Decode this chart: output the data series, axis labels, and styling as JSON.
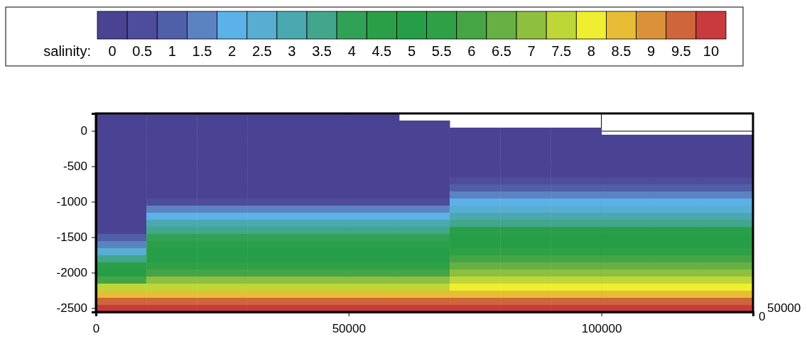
{
  "chart_data": {
    "type": "heatmap",
    "clabel": "salinity:",
    "x": [
      5000,
      15000,
      25000,
      35000,
      45000,
      55000,
      65000,
      75000,
      85000,
      95000,
      105000,
      115000,
      125000
    ],
    "xlim": [
      0,
      130000
    ],
    "xticks": [
      0,
      50000,
      100000
    ],
    "y_categories": [
      null,
      null,
      "0",
      null,
      null,
      null,
      null,
      "-500",
      null,
      null,
      null,
      null,
      "-1000",
      null,
      null,
      null,
      null,
      "-1500",
      null,
      null,
      null,
      null,
      "-2000",
      null,
      null,
      null,
      null,
      "-2500"
    ],
    "grid": true,
    "clim": [
      -0.25,
      10.25
    ],
    "cticks": [
      0,
      0.5,
      1,
      1.5,
      2,
      2.5,
      3,
      3.5,
      4,
      4.5,
      5,
      5.5,
      6,
      6.5,
      7,
      7.5,
      8,
      8.5,
      9,
      9.5,
      10
    ],
    "colors": [
      "#4a4393",
      "#4e4c9c",
      "#4f5fa8",
      "#5b83c2",
      "#5cb1e9",
      "#57aed2",
      "#4aa8b0",
      "#42a68c",
      "#31a155",
      "#2a9f48",
      "#269e47",
      "#2fa046",
      "#45a544",
      "#66b044",
      "#8ebf3e",
      "#bcd737",
      "#f0ee30",
      "#e6bd35",
      "#db913a",
      "#cf663b",
      "#c93a3e"
    ],
    "cells": [
      [
        0,
        0,
        0,
        0,
        0,
        0,
        null,
        null,
        null,
        null,
        null,
        null,
        null
      ],
      [
        0,
        0,
        0,
        0,
        0,
        0,
        0,
        null,
        null,
        null,
        null,
        null,
        null
      ],
      [
        0,
        0,
        0,
        0,
        0,
        0,
        0,
        0,
        0,
        0,
        null,
        null,
        null
      ],
      [
        0,
        0,
        0,
        0,
        0,
        0,
        0,
        0,
        0,
        0,
        0,
        0,
        0
      ],
      [
        0,
        0,
        0,
        0,
        0,
        0,
        0,
        0,
        0,
        0,
        0,
        0,
        0
      ],
      [
        0,
        0,
        0,
        0,
        0,
        0,
        0,
        0,
        0,
        0,
        0,
        0,
        0
      ],
      [
        0,
        0,
        0,
        0,
        0,
        0,
        0,
        0,
        0,
        0,
        0,
        0,
        0
      ],
      [
        0,
        0,
        0,
        0,
        0,
        0,
        0,
        0,
        0,
        0,
        0,
        0,
        0
      ],
      [
        0,
        0,
        0,
        0,
        0,
        0,
        0,
        0,
        0,
        0,
        0,
        0,
        0
      ],
      [
        0,
        0,
        0,
        0,
        0,
        0,
        0,
        0.5,
        0.5,
        0.5,
        0.5,
        0.5,
        0.5
      ],
      [
        0,
        0,
        0,
        0,
        0,
        0,
        0,
        1,
        1,
        1,
        1,
        1,
        1
      ],
      [
        0,
        0,
        0,
        0,
        0,
        0,
        0,
        1.5,
        1.5,
        1.5,
        1.5,
        1.5,
        1.5
      ],
      [
        0,
        0.5,
        0.5,
        0.5,
        0.5,
        0.5,
        0.5,
        2,
        2,
        2,
        2,
        2,
        2
      ],
      [
        0,
        1.5,
        1.5,
        1.5,
        1.5,
        1.5,
        1.5,
        2.5,
        2.5,
        2.5,
        2.5,
        2.5,
        2.5
      ],
      [
        0,
        2,
        2,
        2,
        2,
        2,
        2,
        3,
        3,
        3,
        3,
        3,
        3
      ],
      [
        0,
        3,
        3,
        3,
        3,
        3,
        3,
        3.5,
        3.5,
        3.5,
        3.5,
        3.5,
        3.5
      ],
      [
        0,
        3.5,
        3.5,
        3.5,
        3.5,
        3.5,
        3.5,
        4.5,
        4.5,
        4.5,
        4.5,
        4.5,
        4.5
      ],
      [
        1,
        4,
        4,
        4,
        4,
        4,
        4,
        5,
        5,
        5,
        5,
        5,
        5
      ],
      [
        1.5,
        4.5,
        4.5,
        4.5,
        4.5,
        4.5,
        4.5,
        5,
        5,
        5,
        5,
        5,
        5
      ],
      [
        2.5,
        5,
        5,
        5,
        5,
        5,
        5,
        5.5,
        5.5,
        5.5,
        5.5,
        5.5,
        5.5
      ],
      [
        3.5,
        5,
        5,
        5,
        5,
        5,
        5,
        6,
        6,
        6,
        6,
        6,
        6
      ],
      [
        4.5,
        5.5,
        5.5,
        5.5,
        5.5,
        5.5,
        5.5,
        6.5,
        6.5,
        6.5,
        6.5,
        6.5,
        6.5
      ],
      [
        5,
        6,
        6,
        6,
        6,
        6,
        6,
        7,
        7,
        7,
        7,
        7,
        7
      ],
      [
        6,
        7,
        7,
        7,
        7,
        7,
        7,
        7.5,
        7.5,
        7.5,
        7.5,
        7.5,
        7.5
      ],
      [
        7.5,
        7.5,
        7.5,
        7.5,
        7.5,
        7.5,
        7.5,
        8,
        8,
        8,
        8,
        8,
        8
      ],
      [
        8.5,
        8.5,
        8.5,
        8.5,
        8.5,
        8.5,
        8.5,
        8.5,
        8.5,
        8.5,
        8.5,
        8.5,
        8.5
      ],
      [
        9.5,
        9.5,
        9.5,
        9.5,
        9.5,
        9.5,
        9.5,
        9.5,
        9.5,
        9.5,
        9.5,
        9.5,
        9.5
      ],
      [
        10,
        10,
        10,
        10,
        10,
        10,
        10,
        10,
        10,
        10,
        10,
        10,
        10
      ]
    ],
    "annotations": [
      "0",
      "50000"
    ]
  }
}
